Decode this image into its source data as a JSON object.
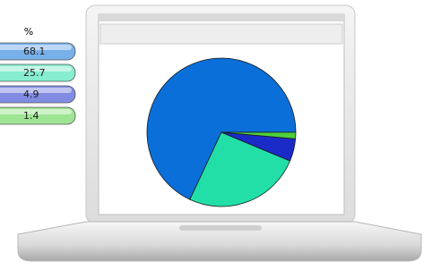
{
  "chart_data": {
    "type": "pie",
    "value_header": "%",
    "values": [
      68.1,
      25.7,
      4.9,
      1.4
    ],
    "colors": [
      "#0a6fd8",
      "#22dfa8",
      "#1a2bc8",
      "#4fcf3a"
    ],
    "start_angle": 0,
    "direction": "counterclockwise"
  }
}
